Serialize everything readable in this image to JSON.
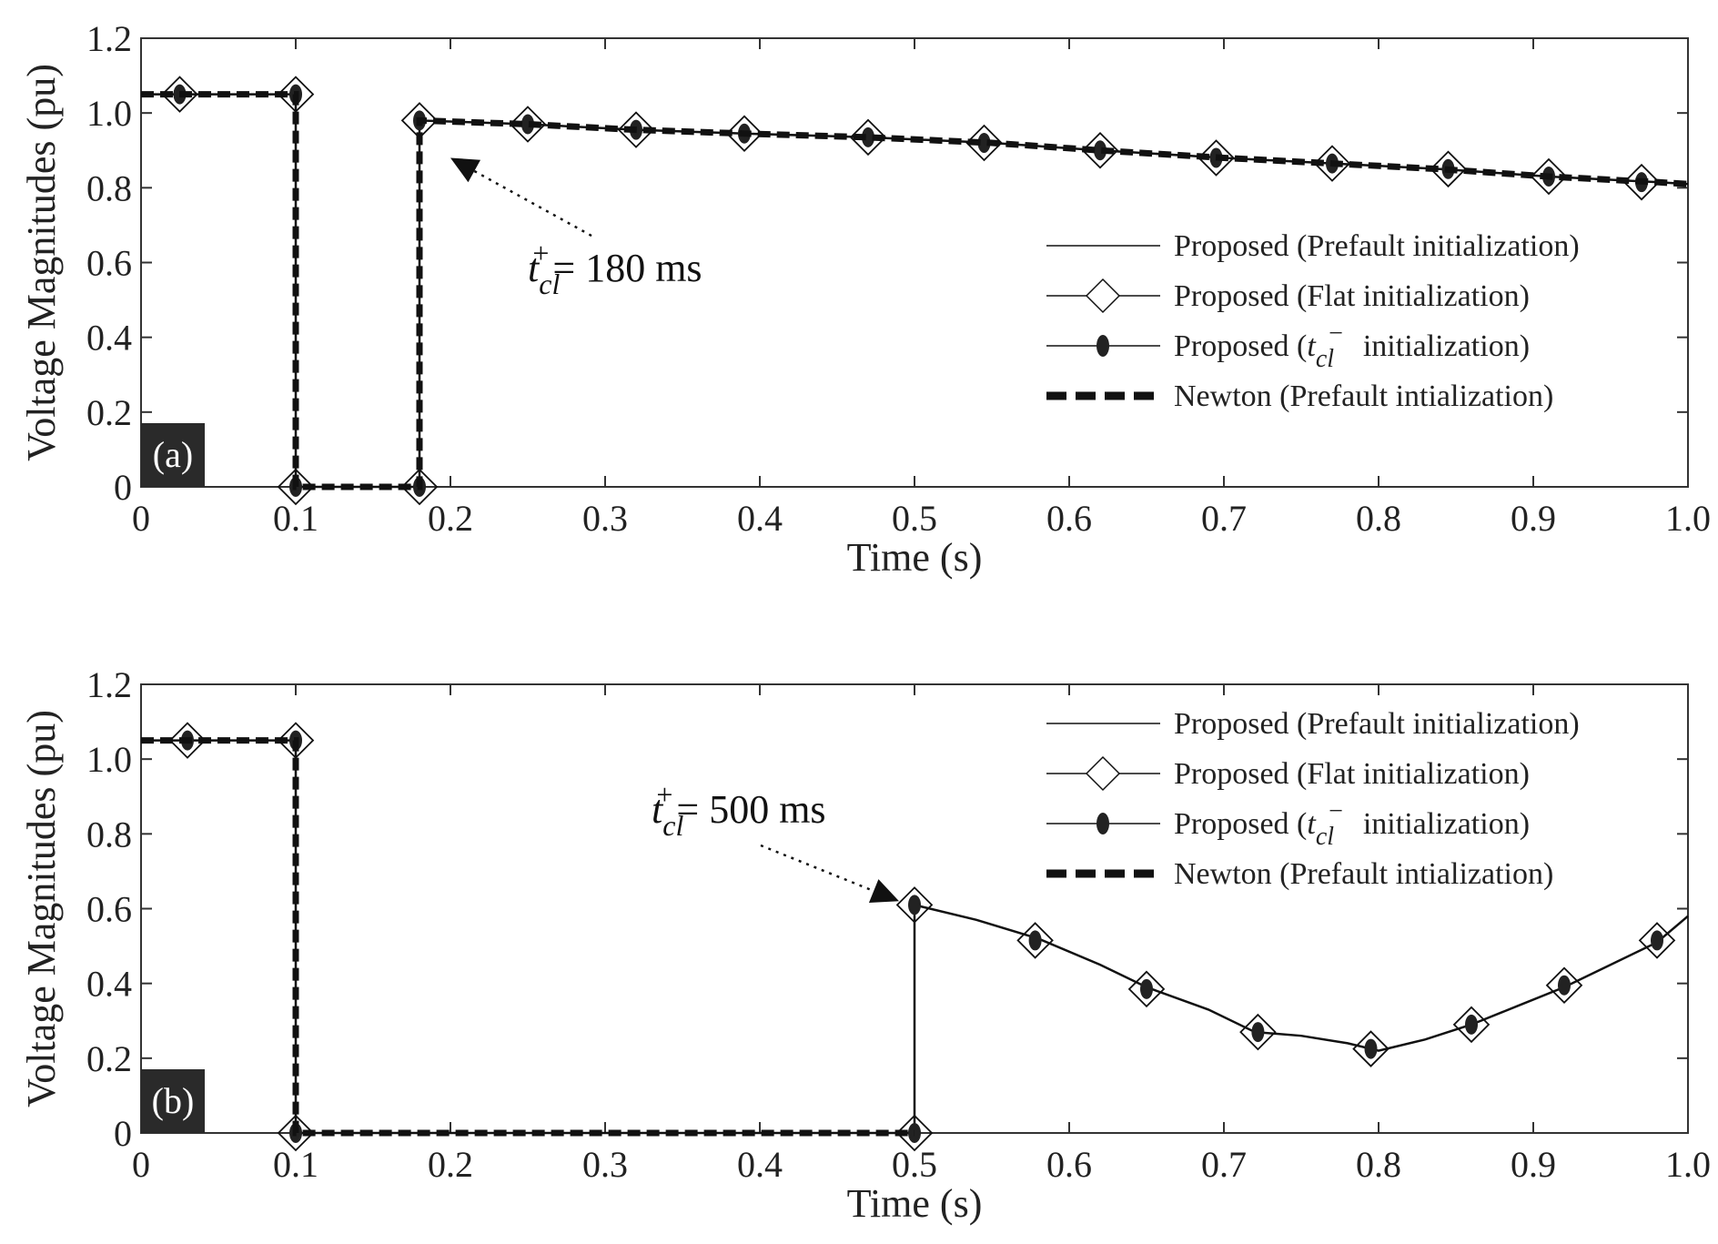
{
  "chart_data": [
    {
      "type": "line",
      "panel": "a",
      "panel_label": "(a)",
      "xlabel": "Time (s)",
      "ylabel": "Voltage Magnitudes (pu)",
      "xlim": [
        0,
        1.0
      ],
      "ylim": [
        0,
        1.2
      ],
      "xticks": [
        "0",
        "0.1",
        "0.2",
        "0.3",
        "0.4",
        "0.5",
        "0.6",
        "0.7",
        "0.8",
        "0.9",
        "1.0"
      ],
      "yticks": [
        "0",
        "0.2",
        "0.4",
        "0.6",
        "0.8",
        "1.0",
        "1.2"
      ],
      "legend_position": "right",
      "series": [
        {
          "name": "Proposed (Prefault initialization)",
          "style": "solid",
          "x": [
            0,
            0.1,
            0.1,
            0.18,
            0.18,
            0.25,
            0.32,
            0.39,
            0.47,
            0.55,
            0.62,
            0.7,
            0.77,
            0.84,
            0.91,
            0.98,
            1.0
          ],
          "y": [
            1.05,
            1.05,
            0,
            0,
            0.98,
            0.97,
            0.955,
            0.945,
            0.935,
            0.92,
            0.9,
            0.88,
            0.865,
            0.85,
            0.83,
            0.815,
            0.81
          ]
        },
        {
          "name": "Proposed (Flat initialization)",
          "style": "diamond-markers",
          "x": [
            0.025,
            0.1,
            0.1,
            0.18,
            0.18,
            0.25,
            0.32,
            0.39,
            0.47,
            0.545,
            0.62,
            0.695,
            0.77,
            0.845,
            0.91,
            0.97
          ],
          "y": [
            1.05,
            1.05,
            0,
            0,
            0.98,
            0.97,
            0.955,
            0.945,
            0.935,
            0.92,
            0.9,
            0.88,
            0.865,
            0.85,
            0.83,
            0.815
          ]
        },
        {
          "name": "Proposed (t_cl^- initialization)",
          "style": "dot-markers",
          "x": [
            0.025,
            0.1,
            0.1,
            0.18,
            0.18,
            0.25,
            0.32,
            0.39,
            0.47,
            0.545,
            0.62,
            0.695,
            0.77,
            0.845,
            0.91,
            0.97
          ],
          "y": [
            1.05,
            1.05,
            0,
            0,
            0.98,
            0.97,
            0.955,
            0.945,
            0.935,
            0.92,
            0.9,
            0.88,
            0.865,
            0.85,
            0.83,
            0.815
          ]
        },
        {
          "name": "Newton (Prefault intialization)",
          "style": "dashed",
          "x": [
            0,
            0.1,
            0.1,
            0.18,
            0.18,
            0.25,
            0.32,
            0.39,
            0.47,
            0.55,
            0.62,
            0.7,
            0.77,
            0.84,
            0.91,
            0.98,
            1.0
          ],
          "y": [
            1.05,
            1.05,
            0,
            0,
            0.98,
            0.97,
            0.955,
            0.945,
            0.935,
            0.92,
            0.9,
            0.88,
            0.865,
            0.85,
            0.83,
            0.815,
            0.81
          ]
        }
      ],
      "annotation": {
        "symbol": "t",
        "sup": "+",
        "sub": "cl",
        "text": "= 180 ms",
        "arrow_to": [
          0.2,
          0.88
        ],
        "text_at": [
          0.25,
          0.55
        ]
      }
    },
    {
      "type": "line",
      "panel": "b",
      "panel_label": "(b)",
      "xlabel": "Time (s)",
      "ylabel": "Voltage Magnitudes (pu)",
      "xlim": [
        0,
        1.0
      ],
      "ylim": [
        0,
        1.2
      ],
      "xticks": [
        "0",
        "0.1",
        "0.2",
        "0.3",
        "0.4",
        "0.5",
        "0.6",
        "0.7",
        "0.8",
        "0.9",
        "1.0"
      ],
      "yticks": [
        "0",
        "0.2",
        "0.4",
        "0.6",
        "0.8",
        "1.0",
        "1.2"
      ],
      "legend_position": "top-right",
      "series": [
        {
          "name": "Proposed (Prefault initialization)",
          "style": "solid",
          "x": [
            0,
            0.1,
            0.1,
            0.5,
            0.5,
            0.54,
            0.58,
            0.62,
            0.65,
            0.69,
            0.72,
            0.75,
            0.78,
            0.8,
            0.83,
            0.86,
            0.89,
            0.92,
            0.95,
            0.98,
            1.0
          ],
          "y": [
            1.05,
            1.05,
            0,
            0,
            0.61,
            0.57,
            0.52,
            0.45,
            0.39,
            0.33,
            0.27,
            0.26,
            0.24,
            0.22,
            0.25,
            0.29,
            0.34,
            0.39,
            0.45,
            0.51,
            0.58
          ]
        },
        {
          "name": "Proposed (Flat initialization)",
          "style": "diamond-markers",
          "x": [
            0.03,
            0.1,
            0.1,
            0.5,
            0.5,
            0.578,
            0.65,
            0.722,
            0.795,
            0.86,
            0.92,
            0.98
          ],
          "y": [
            1.05,
            1.05,
            0,
            0,
            0.61,
            0.515,
            0.385,
            0.27,
            0.225,
            0.29,
            0.395,
            0.515
          ]
        },
        {
          "name": "Proposed (t_cl^- initialization)",
          "style": "dot-markers",
          "x": [
            0.03,
            0.1,
            0.1,
            0.5,
            0.5,
            0.578,
            0.65,
            0.722,
            0.795,
            0.86,
            0.92,
            0.98
          ],
          "y": [
            1.05,
            1.05,
            0,
            0,
            0.61,
            0.515,
            0.385,
            0.27,
            0.225,
            0.29,
            0.395,
            0.515
          ]
        },
        {
          "name": "Newton (Prefault intialization)",
          "style": "dashed",
          "x": [
            0,
            0.1,
            0.1,
            0.5
          ],
          "y": [
            1.05,
            1.05,
            0,
            0
          ]
        }
      ],
      "annotation": {
        "symbol": "t",
        "sup": "+",
        "sub": "cl",
        "text": "= 500 ms",
        "arrow_to": [
          0.49,
          0.62
        ],
        "text_at": [
          0.33,
          0.83
        ]
      }
    }
  ],
  "legend_labels": {
    "prefault": "Proposed (Prefault initialization)",
    "flat": "Proposed (Flat initialization)",
    "tcl_prefix": "Proposed (",
    "tcl_symbol": "t",
    "tcl_sub": "cl",
    "tcl_sup": "−",
    "tcl_suffix": "initialization)",
    "newton": "Newton (Prefault intialization)"
  },
  "colors": {
    "line": "#111111",
    "axis": "#333333",
    "panel_label_bg": "#2a2a2a",
    "marker_fill": "#ffffff",
    "dot_fill": "#222222"
  }
}
